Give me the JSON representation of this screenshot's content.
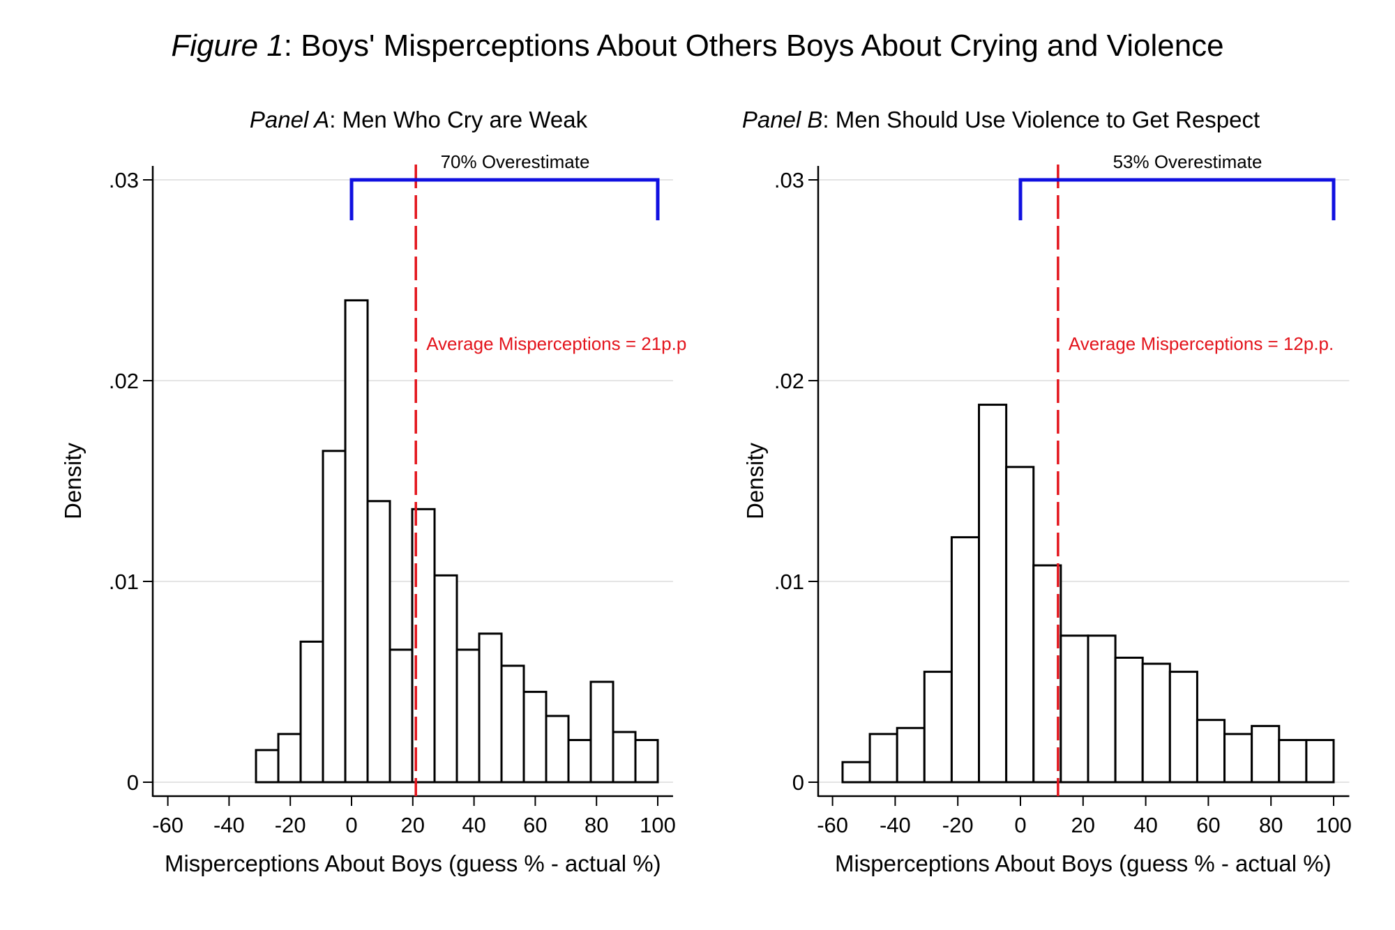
{
  "figure": {
    "title_italic": "Figure 1",
    "title_rest": ": Boys' Misperceptions About Others Boys About Crying and Violence"
  },
  "colors": {
    "mean_line": "#e3141c",
    "bracket": "#1010e0",
    "bar_fill": "#ffffff",
    "bar_stroke": "#000000",
    "grid": "#dcdcdc"
  },
  "chart_data": [
    {
      "type": "bar",
      "subtype": "histogram",
      "panel_label_italic": "Panel A",
      "panel_label_rest": ": Men Who Cry are Weak",
      "title": "Panel A: Men Who Cry are Weak",
      "xlabel": "Misperceptions About Boys (guess % - actual %)",
      "ylabel": "Density",
      "xlim": [
        -65,
        105
      ],
      "ylim": [
        0,
        0.031
      ],
      "xticks": [
        -60,
        -40,
        -20,
        0,
        20,
        40,
        60,
        80,
        100
      ],
      "xtick_labels": [
        "-60",
        "-40",
        "-20",
        "0",
        "20",
        "40",
        "60",
        "80",
        "100"
      ],
      "yticks": [
        0,
        0.01,
        0.02,
        0.03
      ],
      "ytick_labels": [
        "0",
        ".01",
        ".02",
        ".03"
      ],
      "grid": true,
      "bin_start": -31.2,
      "bin_end": 100,
      "values": [
        0.0016,
        0.0024,
        0.007,
        0.0165,
        0.024,
        0.014,
        0.0066,
        0.0136,
        0.0103,
        0.0066,
        0.0074,
        0.0058,
        0.0045,
        0.0033,
        0.0021,
        0.005,
        0.0025,
        0.0021
      ],
      "mean_line": {
        "x": 21,
        "label": "Average Misperceptions = 21p.p"
      },
      "bracket": {
        "x_from": 0,
        "x_to": 100,
        "y": 0.03,
        "label": "70% Overestimate"
      }
    },
    {
      "type": "bar",
      "subtype": "histogram",
      "panel_label_italic": "Panel B",
      "panel_label_rest": ": Men Should Use Violence to Get Respect",
      "title": "Panel B: Men Should Use Violence to Get Respect",
      "xlabel": "Misperceptions About Boys (guess % - actual %)",
      "ylabel": "Density",
      "xlim": [
        -65,
        105
      ],
      "ylim": [
        0,
        0.031
      ],
      "xticks": [
        -60,
        -40,
        -20,
        0,
        20,
        40,
        60,
        80,
        100
      ],
      "xtick_labels": [
        "-60",
        "-40",
        "-20",
        "0",
        "20",
        "40",
        "60",
        "80",
        "100"
      ],
      "yticks": [
        0,
        0.01,
        0.02,
        0.03
      ],
      "ytick_labels": [
        "0",
        ".01",
        ".02",
        ".03"
      ],
      "grid": true,
      "bin_start": -56.8,
      "bin_end": 100,
      "values": [
        0.001,
        0.0024,
        0.0027,
        0.0055,
        0.0122,
        0.0188,
        0.0157,
        0.0108,
        0.0073,
        0.0073,
        0.0062,
        0.0059,
        0.0055,
        0.0031,
        0.0024,
        0.0028,
        0.0021,
        0.0021
      ],
      "mean_line": {
        "x": 12,
        "label": "Average Misperceptions = 12p.p."
      },
      "bracket": {
        "x_from": 0,
        "x_to": 100,
        "y": 0.03,
        "label": "53% Overestimate"
      }
    }
  ]
}
